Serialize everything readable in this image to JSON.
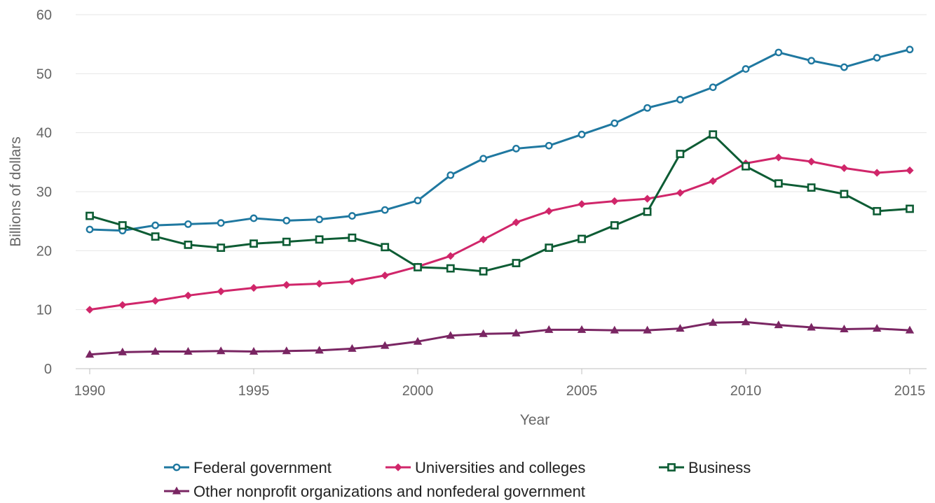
{
  "chart_data": {
    "type": "line",
    "title": "",
    "xlabel": "Year",
    "ylabel": "Billions of dollars",
    "xlim": [
      1990,
      2015
    ],
    "ylim": [
      0,
      60
    ],
    "x_ticks": [
      "1990",
      "1995",
      "2000",
      "2005",
      "2010",
      "2015"
    ],
    "y_ticks": [
      "0",
      "10",
      "20",
      "30",
      "40",
      "50",
      "60"
    ],
    "grid": true,
    "legend_position": "bottom",
    "x": [
      1990,
      1991,
      1992,
      1993,
      1994,
      1995,
      1996,
      1997,
      1998,
      1999,
      2000,
      2001,
      2002,
      2003,
      2004,
      2005,
      2006,
      2007,
      2008,
      2009,
      2010,
      2011,
      2012,
      2013,
      2014,
      2015
    ],
    "series": [
      {
        "name": "Federal government",
        "color": "#1f78a0",
        "marker": "circle",
        "values": [
          23.6,
          23.4,
          24.3,
          24.5,
          24.7,
          25.5,
          25.1,
          25.3,
          25.9,
          26.9,
          28.5,
          32.8,
          35.6,
          37.3,
          37.8,
          39.7,
          41.6,
          44.2,
          45.6,
          47.7,
          50.8,
          53.6,
          52.2,
          51.1,
          52.7,
          54.1
        ]
      },
      {
        "name": "Universities and colleges",
        "color": "#d0266a",
        "marker": "diamond",
        "values": [
          10.0,
          10.8,
          11.5,
          12.4,
          13.1,
          13.7,
          14.2,
          14.4,
          14.8,
          15.8,
          17.3,
          19.1,
          21.9,
          24.8,
          26.7,
          27.9,
          28.4,
          28.8,
          29.8,
          31.8,
          34.8,
          35.8,
          35.1,
          34.0,
          33.2,
          33.6
        ]
      },
      {
        "name": "Business",
        "color": "#0d5c34",
        "marker": "square",
        "values": [
          25.9,
          24.3,
          22.4,
          21.0,
          20.5,
          21.2,
          21.5,
          21.9,
          22.2,
          20.6,
          17.2,
          17.0,
          16.5,
          17.9,
          20.5,
          22.0,
          24.3,
          26.6,
          36.4,
          39.7,
          34.3,
          31.4,
          30.7,
          29.6,
          26.7,
          27.1
        ]
      },
      {
        "name": "Other nonprofit organizations and nonfederal government",
        "color": "#7a2663",
        "marker": "triangle",
        "values": [
          2.4,
          2.8,
          2.9,
          2.9,
          3.0,
          2.9,
          3.0,
          3.1,
          3.4,
          3.9,
          4.6,
          5.6,
          5.9,
          6.0,
          6.6,
          6.6,
          6.5,
          6.5,
          6.8,
          7.8,
          7.9,
          7.4,
          7.0,
          6.7,
          6.8,
          6.5
        ]
      }
    ]
  }
}
